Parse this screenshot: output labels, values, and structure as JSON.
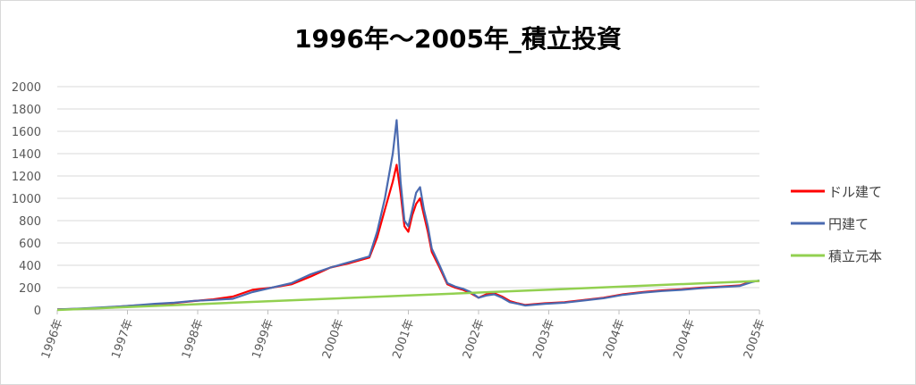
{
  "chart_data": {
    "type": "line",
    "title": "1996年～2005年_積立投資",
    "xlabel": "",
    "ylabel": "",
    "ylim": [
      0,
      2000
    ],
    "yticks": [
      0,
      200,
      400,
      600,
      800,
      1000,
      1200,
      1400,
      1600,
      1800,
      2000
    ],
    "xlim": [
      1996.0,
      2005.0
    ],
    "x_tick_labels": [
      "1996年",
      "1997年",
      "1998年",
      "1999年",
      "2000年",
      "2001年",
      "2002年",
      "2003年",
      "2004年",
      "2004年",
      "2005年"
    ],
    "grid": true,
    "legend_position": "right",
    "series": [
      {
        "name": "ドル建て",
        "color": "#ff0000",
        "x": [
          1996.0,
          1996.25,
          1996.5,
          1996.75,
          1997.0,
          1997.25,
          1997.5,
          1997.75,
          1998.0,
          1998.25,
          1998.5,
          1998.75,
          1999.0,
          1999.25,
          1999.5,
          1999.75,
          2000.0,
          2000.1,
          2000.2,
          2000.3,
          2000.35,
          2000.4,
          2000.45,
          2000.5,
          2000.55,
          2000.6,
          2000.65,
          2000.7,
          2000.75,
          2000.8,
          2000.9,
          2001.0,
          2001.1,
          2001.2,
          2001.3,
          2001.4,
          2001.5,
          2001.6,
          2001.7,
          2001.8,
          2001.9,
          2002.0,
          2002.25,
          2002.5,
          2002.75,
          2003.0,
          2003.25,
          2003.5,
          2003.75,
          2004.0,
          2004.25,
          2004.5,
          2004.75,
          2004.9,
          2005.0
        ],
        "y": [
          5,
          10,
          18,
          28,
          40,
          50,
          62,
          80,
          95,
          120,
          180,
          200,
          230,
          300,
          380,
          420,
          470,
          650,
          900,
          1150,
          1300,
          1050,
          750,
          700,
          850,
          950,
          1000,
          850,
          700,
          520,
          380,
          230,
          200,
          180,
          150,
          110,
          140,
          150,
          120,
          80,
          60,
          45,
          60,
          70,
          90,
          110,
          140,
          160,
          175,
          185,
          200,
          210,
          220,
          255,
          260
        ]
      },
      {
        "name": "円建て",
        "color": "#4a6ab0",
        "x": [
          1996.0,
          1996.25,
          1996.5,
          1996.75,
          1997.0,
          1997.25,
          1997.5,
          1997.75,
          1998.0,
          1998.25,
          1998.5,
          1998.75,
          1999.0,
          1999.25,
          1999.5,
          1999.75,
          2000.0,
          2000.1,
          2000.2,
          2000.3,
          2000.35,
          2000.4,
          2000.45,
          2000.5,
          2000.55,
          2000.6,
          2000.65,
          2000.7,
          2000.75,
          2000.8,
          2000.9,
          2001.0,
          2001.1,
          2001.2,
          2001.3,
          2001.4,
          2001.5,
          2001.6,
          2001.7,
          2001.8,
          2001.9,
          2002.0,
          2002.25,
          2002.5,
          2002.75,
          2003.0,
          2003.25,
          2003.5,
          2003.75,
          2004.0,
          2004.25,
          2004.5,
          2004.75,
          2004.9,
          2005.0
        ],
        "y": [
          5,
          11,
          20,
          30,
          42,
          55,
          65,
          82,
          90,
          100,
          160,
          200,
          240,
          320,
          380,
          430,
          480,
          700,
          1000,
          1400,
          1700,
          1150,
          800,
          750,
          900,
          1050,
          1100,
          900,
          750,
          550,
          400,
          240,
          210,
          190,
          160,
          110,
          130,
          140,
          110,
          70,
          55,
          40,
          55,
          65,
          85,
          105,
          135,
          155,
          170,
          180,
          195,
          205,
          215,
          250,
          265
        ]
      },
      {
        "name": "積立元本",
        "color": "#92d050",
        "x": [
          1996.0,
          2005.0
        ],
        "y": [
          0,
          260
        ]
      }
    ]
  }
}
